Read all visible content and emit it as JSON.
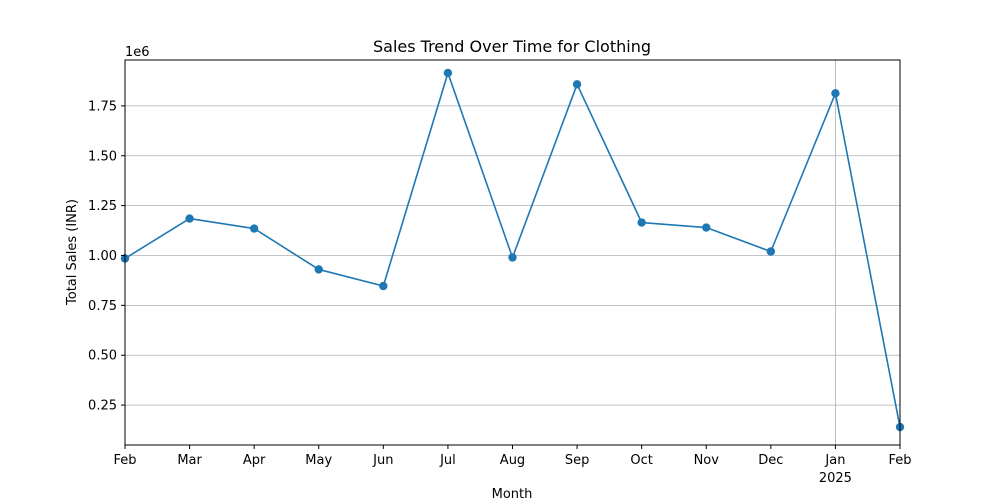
{
  "chart_data": {
    "type": "line",
    "title": "Sales Trend Over Time for Clothing",
    "xlabel": "Month",
    "ylabel": "Total Sales (INR)",
    "y_offset_label": "1e6",
    "x_tick_labels": [
      "Feb",
      "Mar",
      "Apr",
      "May",
      "Jun",
      "Jul",
      "Aug",
      "Sep",
      "Oct",
      "Nov",
      "Dec",
      "Jan",
      "Feb"
    ],
    "x_tick_sublabels": [
      "",
      "",
      "",
      "",
      "",
      "",
      "",
      "",
      "",
      "",
      "",
      "2025",
      ""
    ],
    "y_ticks": [
      0.25,
      0.5,
      0.75,
      1.0,
      1.25,
      1.5,
      1.75
    ],
    "y_tick_labels": [
      "0.25",
      "0.50",
      "0.75",
      "1.00",
      "1.25",
      "1.50",
      "1.75"
    ],
    "ylim": [
      0.05,
      1.98
    ],
    "grid": true,
    "series": [
      {
        "color": "#1f77b4",
        "values": [
          0.985,
          1.185,
          1.135,
          0.93,
          0.847,
          1.915,
          0.99,
          1.858,
          1.165,
          1.14,
          1.02,
          1.813,
          0.14
        ]
      }
    ]
  }
}
